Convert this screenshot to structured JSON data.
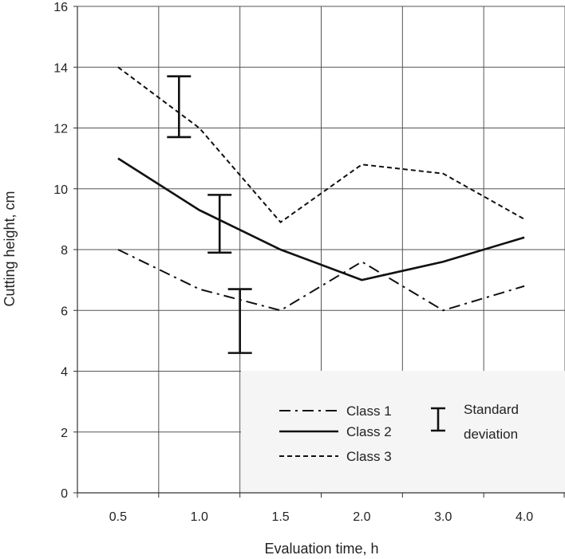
{
  "chart_data": {
    "type": "line",
    "x_tick_labels": [
      "0.5",
      "1.0",
      "1.5",
      "2.0",
      "3.0",
      "4.0"
    ],
    "xlabel": "Evaluation time, h",
    "ylabel": "Cutting height, cm",
    "y_ticks": [
      "0",
      "2",
      "4",
      "6",
      "8",
      "10",
      "12",
      "14",
      "16"
    ],
    "ylim": [
      0,
      16
    ],
    "grid": true,
    "legend_position": "bottom-right",
    "series": [
      {
        "name": "Class 1",
        "style": "dash-dot",
        "values": [
          8.0,
          6.7,
          6.0,
          7.6,
          6.0,
          6.8
        ]
      },
      {
        "name": "Class 2",
        "style": "solid",
        "values": [
          11.0,
          9.3,
          8.0,
          7.0,
          7.6,
          8.4
        ]
      },
      {
        "name": "Class 3",
        "style": "dashed",
        "values": [
          14.0,
          12.0,
          8.9,
          10.8,
          10.5,
          9.0
        ]
      }
    ],
    "error_bars": [
      {
        "x_position": 0.75,
        "low": 11.7,
        "high": 13.7
      },
      {
        "x_position": 1.25,
        "low": 7.9,
        "high": 9.8
      },
      {
        "x_position": 1.5,
        "low": 4.6,
        "high": 6.7
      }
    ],
    "legend": {
      "class1": "Class 1",
      "class2": "Class 2",
      "class3": "Class 3",
      "std_line1": "Standard",
      "std_line2": "deviation"
    }
  },
  "colors": {
    "line": "#111111",
    "grid": "#555555",
    "legend_box": "#f5f5f5"
  }
}
